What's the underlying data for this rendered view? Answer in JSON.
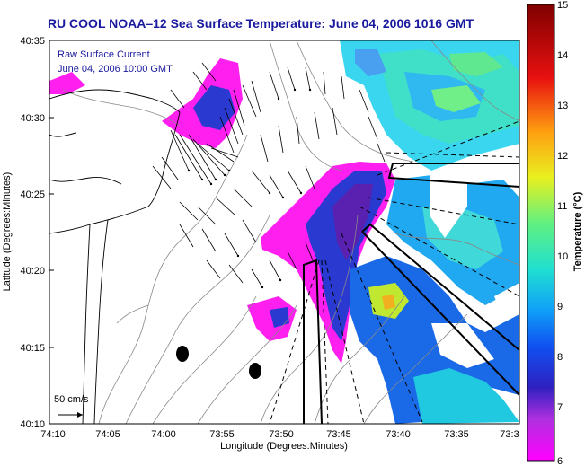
{
  "title": "RU COOL  NOAA–12  Sea Surface Temperature:  June 04, 2006 1016 GMT",
  "legend": {
    "line1": "Raw Surface Current",
    "line2": "June 04, 2006 10:00 GMT"
  },
  "scale": {
    "label": "50 cm/s"
  },
  "x_axis": {
    "label": "Longitude (Degrees:Minutes)",
    "ticks": [
      "74:10",
      "74:05",
      "74:00",
      "73:55",
      "73:50",
      "73:45",
      "73:40",
      "73:35",
      "73:3"
    ]
  },
  "y_axis": {
    "label": "Latitude (Degrees:Minutes)",
    "ticks": [
      "40:35",
      "40:30",
      "40:25",
      "40:20",
      "40:15",
      "40:10"
    ]
  },
  "colorbar": {
    "label": "Temperature (°C)",
    "ticks": [
      "15",
      "14",
      "13",
      "12",
      "11",
      "10",
      "9",
      "8",
      "7",
      "6"
    ],
    "colors": [
      "#ff00ff",
      "#9b3bd8",
      "#2a2cc8",
      "#1060f0",
      "#10b0f0",
      "#20e0c8",
      "#80f070",
      "#e8f020",
      "#ff9010",
      "#e01010",
      "#800000"
    ]
  }
}
